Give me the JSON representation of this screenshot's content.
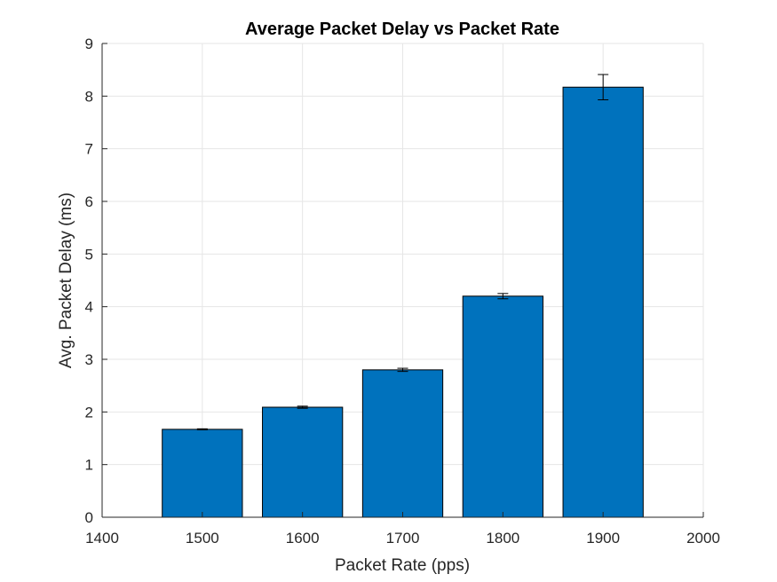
{
  "chart_data": {
    "type": "bar",
    "title": "Average Packet Delay vs Packet Rate",
    "xlabel": "Packet Rate (pps)",
    "ylabel": "Avg. Packet Delay (ms)",
    "x": [
      1500,
      1600,
      1700,
      1800,
      1900
    ],
    "values": [
      1.67,
      2.09,
      2.8,
      4.2,
      8.17
    ],
    "errors": [
      0.01,
      0.02,
      0.03,
      0.05,
      0.24
    ],
    "xlim": [
      1400,
      2000
    ],
    "ylim": [
      0,
      9
    ],
    "xticks": [
      1400,
      1500,
      1600,
      1700,
      1800,
      1900,
      2000
    ],
    "yticks": [
      0,
      1,
      2,
      3,
      4,
      5,
      6,
      7,
      8,
      9
    ],
    "bar_color": "#0072BD",
    "grid": true
  }
}
